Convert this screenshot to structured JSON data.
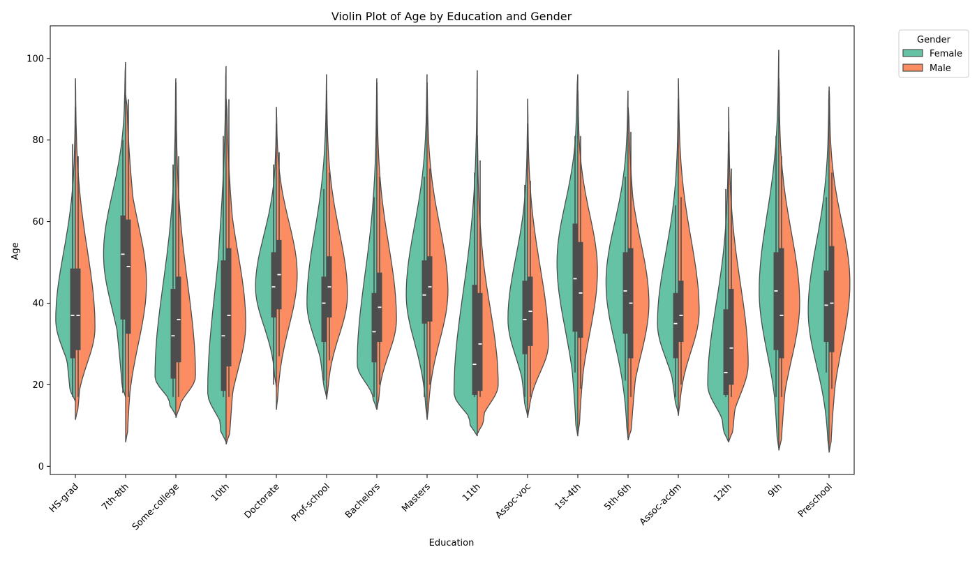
{
  "chart_data": {
    "type": "violin",
    "title": "Violin Plot of Age by Education and Gender",
    "xlabel": "Education",
    "ylabel": "Age",
    "ylim": [
      -2,
      108
    ],
    "yticks": [
      0,
      20,
      40,
      60,
      80,
      100
    ],
    "grid": false,
    "split": true,
    "legend": {
      "title": "Gender",
      "placement": "outside-top-right",
      "entries": [
        {
          "name": "Female",
          "color": "#66c2a5"
        },
        {
          "name": "Male",
          "color": "#fc8d62"
        }
      ]
    },
    "categories": [
      "HS-grad",
      "7th-8th",
      "Some-college",
      "10th",
      "Doctorate",
      "Prof-school",
      "Bachelors",
      "Masters",
      "11th",
      "Assoc-voc",
      "1st-4th",
      "5th-6th",
      "Assoc-acdm",
      "12th",
      "9th",
      "Preschool"
    ],
    "series": [
      {
        "name": "Female",
        "color": "#66c2a5",
        "min": [
          17,
          18,
          17,
          17,
          20,
          21,
          17,
          17,
          17,
          17,
          23,
          21,
          17,
          17,
          17,
          23
        ],
        "q1": [
          26.5,
          36,
          21.5,
          18.5,
          36.5,
          30.5,
          25.5,
          35,
          17.5,
          27.5,
          33,
          32.5,
          26.5,
          17.5,
          28.5,
          30.5
        ],
        "median": [
          37,
          52,
          32,
          32,
          44,
          40,
          33,
          42,
          25,
          36,
          46,
          43,
          35,
          23,
          43,
          39.5
        ],
        "q3": [
          48.5,
          61.5,
          43.5,
          50.5,
          52.5,
          46.5,
          42.5,
          50.5,
          44.5,
          45.5,
          59.5,
          52.5,
          42.5,
          38.5,
          52.5,
          48
        ],
        "max": [
          79,
          80,
          74,
          81,
          74,
          68,
          66,
          71,
          72,
          69,
          81,
          71,
          64,
          68,
          81,
          66
        ],
        "kde_min": [
          16,
          17,
          12.5,
          6,
          19.5,
          17,
          14,
          12,
          7.5,
          12.5,
          7.5,
          7,
          13,
          6,
          4.5,
          4
        ],
        "kde_max": [
          88,
          99,
          95,
          98,
          84,
          96,
          95,
          96,
          97,
          84,
          96,
          92,
          90,
          82,
          102,
          92
        ],
        "kde_peak": [
          36,
          52,
          22,
          18,
          44,
          40,
          25,
          42,
          18,
          36,
          50,
          45,
          35,
          20,
          43,
          38
        ],
        "kde_width": [
          0.8,
          0.9,
          0.85,
          0.75,
          0.85,
          0.8,
          0.8,
          0.85,
          0.95,
          0.8,
          0.85,
          0.9,
          0.85,
          0.85,
          0.8,
          0.85
        ]
      },
      {
        "name": "Male",
        "color": "#fc8d62",
        "min": [
          17,
          17,
          17,
          17,
          27,
          26,
          20,
          20,
          17,
          17,
          19,
          17,
          20,
          17,
          17,
          19
        ],
        "q1": [
          28.5,
          32.5,
          25.5,
          24.5,
          38.5,
          36.5,
          30.5,
          35.5,
          18.5,
          29.5,
          31.5,
          26.5,
          30.5,
          20,
          26.5,
          28
        ],
        "median": [
          37,
          49,
          36,
          37,
          47,
          44,
          39,
          44,
          30,
          38,
          42.5,
          40,
          37,
          29,
          37,
          40
        ],
        "q3": [
          48.5,
          60.5,
          46.5,
          53.5,
          55.5,
          51.5,
          47.5,
          51.5,
          42.5,
          46.5,
          55,
          53.5,
          45.5,
          43.5,
          53.5,
          54
        ],
        "max": [
          76,
          90,
          76,
          90,
          77,
          72,
          71,
          73,
          75,
          70,
          81,
          82,
          66,
          73,
          76,
          72
        ],
        "kde_min": [
          11.5,
          6,
          12,
          5.5,
          14,
          16.5,
          14,
          11.5,
          8,
          12,
          8,
          6.5,
          12.5,
          6,
          4,
          3.5
        ],
        "kde_max": [
          95,
          91,
          94,
          90,
          88,
          92,
          94,
          94,
          81,
          90,
          92,
          88,
          95,
          88,
          95,
          93
        ],
        "kde_peak": [
          34,
          45,
          22,
          35,
          47,
          42,
          36,
          43,
          20,
          30,
          48,
          40,
          38,
          25,
          40,
          45
        ],
        "kde_width": [
          0.8,
          0.85,
          0.8,
          0.8,
          0.85,
          0.85,
          0.8,
          0.85,
          0.85,
          0.85,
          0.8,
          0.85,
          0.85,
          0.8,
          0.85,
          0.85
        ]
      }
    ]
  }
}
